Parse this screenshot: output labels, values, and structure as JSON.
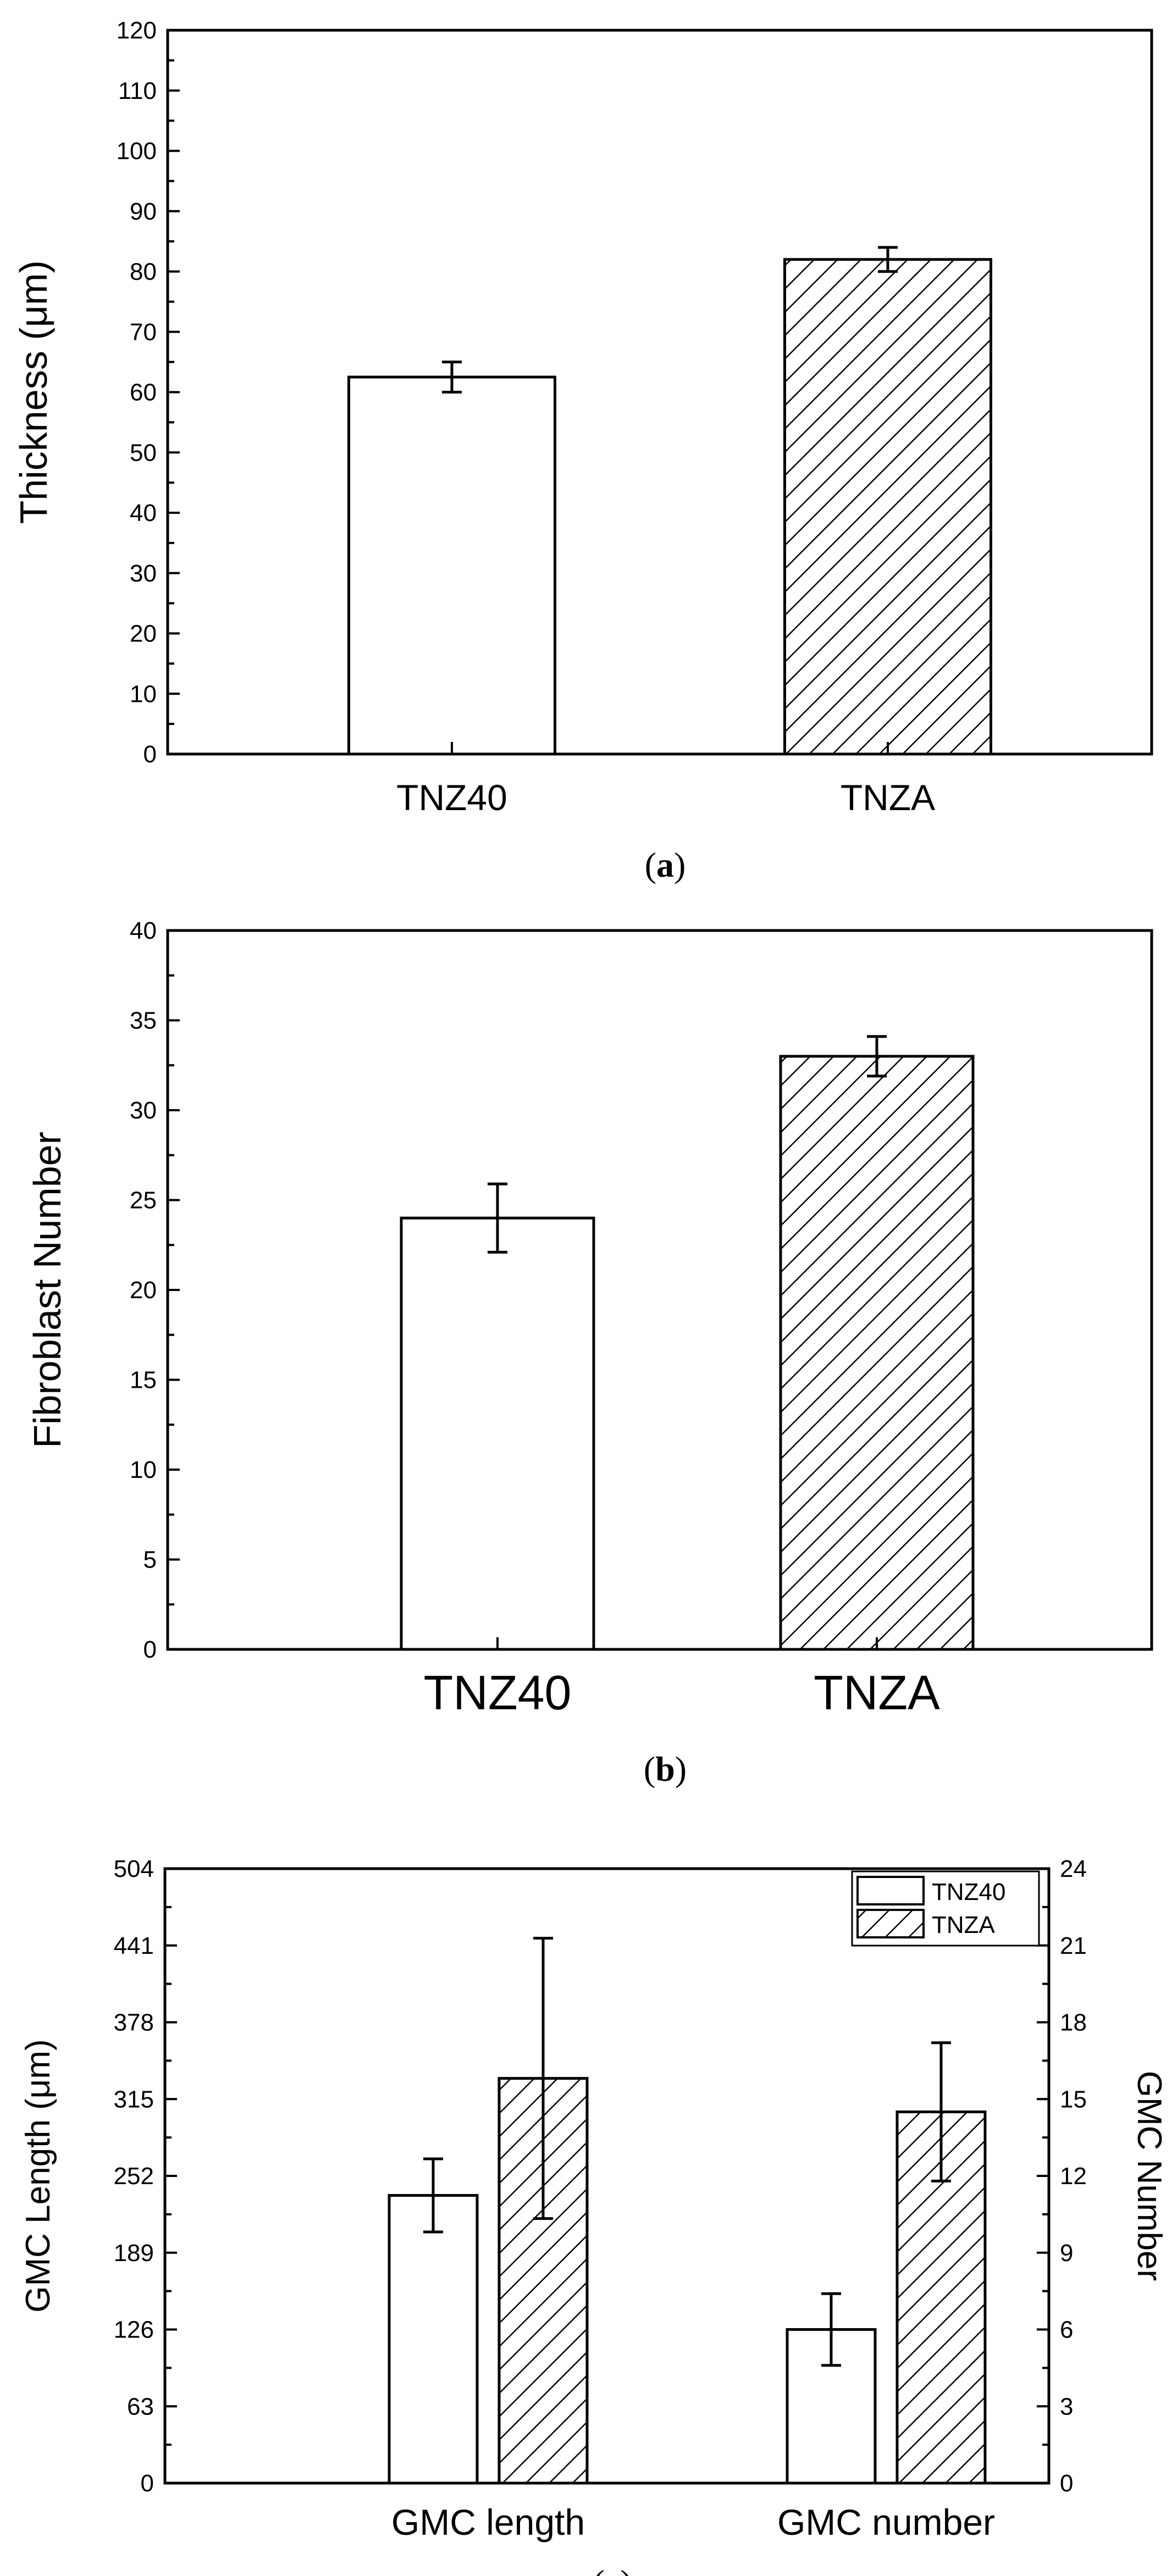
{
  "chart_data": [
    {
      "type": "bar",
      "caption_letter": "a",
      "categories": [
        "TNZ40",
        "TNZA"
      ],
      "values": [
        62.5,
        82.0
      ],
      "errors": [
        2.5,
        2.0
      ],
      "patterns": [
        "plain",
        "hatch"
      ],
      "ylabel": "Thickness (μm)",
      "ylim": [
        0,
        120
      ],
      "yticks": [
        "0",
        "10",
        "20",
        "30",
        "40",
        "50",
        "60",
        "70",
        "80",
        "90",
        "100",
        "110",
        "120"
      ]
    },
    {
      "type": "bar",
      "caption_letter": "b",
      "categories": [
        "TNZ40",
        "TNZA"
      ],
      "values": [
        24.0,
        33.0
      ],
      "errors": [
        1.9,
        1.1
      ],
      "patterns": [
        "plain",
        "hatch"
      ],
      "ylabel": "Fibroblast Number",
      "ylim": [
        0,
        40
      ],
      "yticks": [
        "0",
        "5",
        "10",
        "15",
        "20",
        "25",
        "30",
        "35",
        "40"
      ]
    },
    {
      "type": "bar",
      "caption_letter": "c",
      "categories": [
        "GMC length",
        "GMC number"
      ],
      "series": [
        {
          "name": "TNZ40",
          "pattern": "plain",
          "values": [
            236,
            6.0
          ],
          "errors": [
            30,
            1.4
          ]
        },
        {
          "name": "TNZA",
          "pattern": "hatch",
          "values": [
            332,
            14.5
          ],
          "errors": [
            115,
            2.7
          ]
        }
      ],
      "ylabel": "GMC Length (μm)",
      "ylim": [
        0,
        504
      ],
      "yticks": [
        "0",
        "63",
        "126",
        "189",
        "252",
        "315",
        "378",
        "441",
        "504"
      ],
      "y2label": "GMC Number",
      "y2lim": [
        0,
        24
      ],
      "y2ticks": [
        "0",
        "3",
        "6",
        "9",
        "12",
        "15",
        "18",
        "21",
        "24"
      ],
      "legend": {
        "position": "top-right",
        "entries": [
          "TNZ40",
          "TNZA"
        ]
      }
    }
  ]
}
